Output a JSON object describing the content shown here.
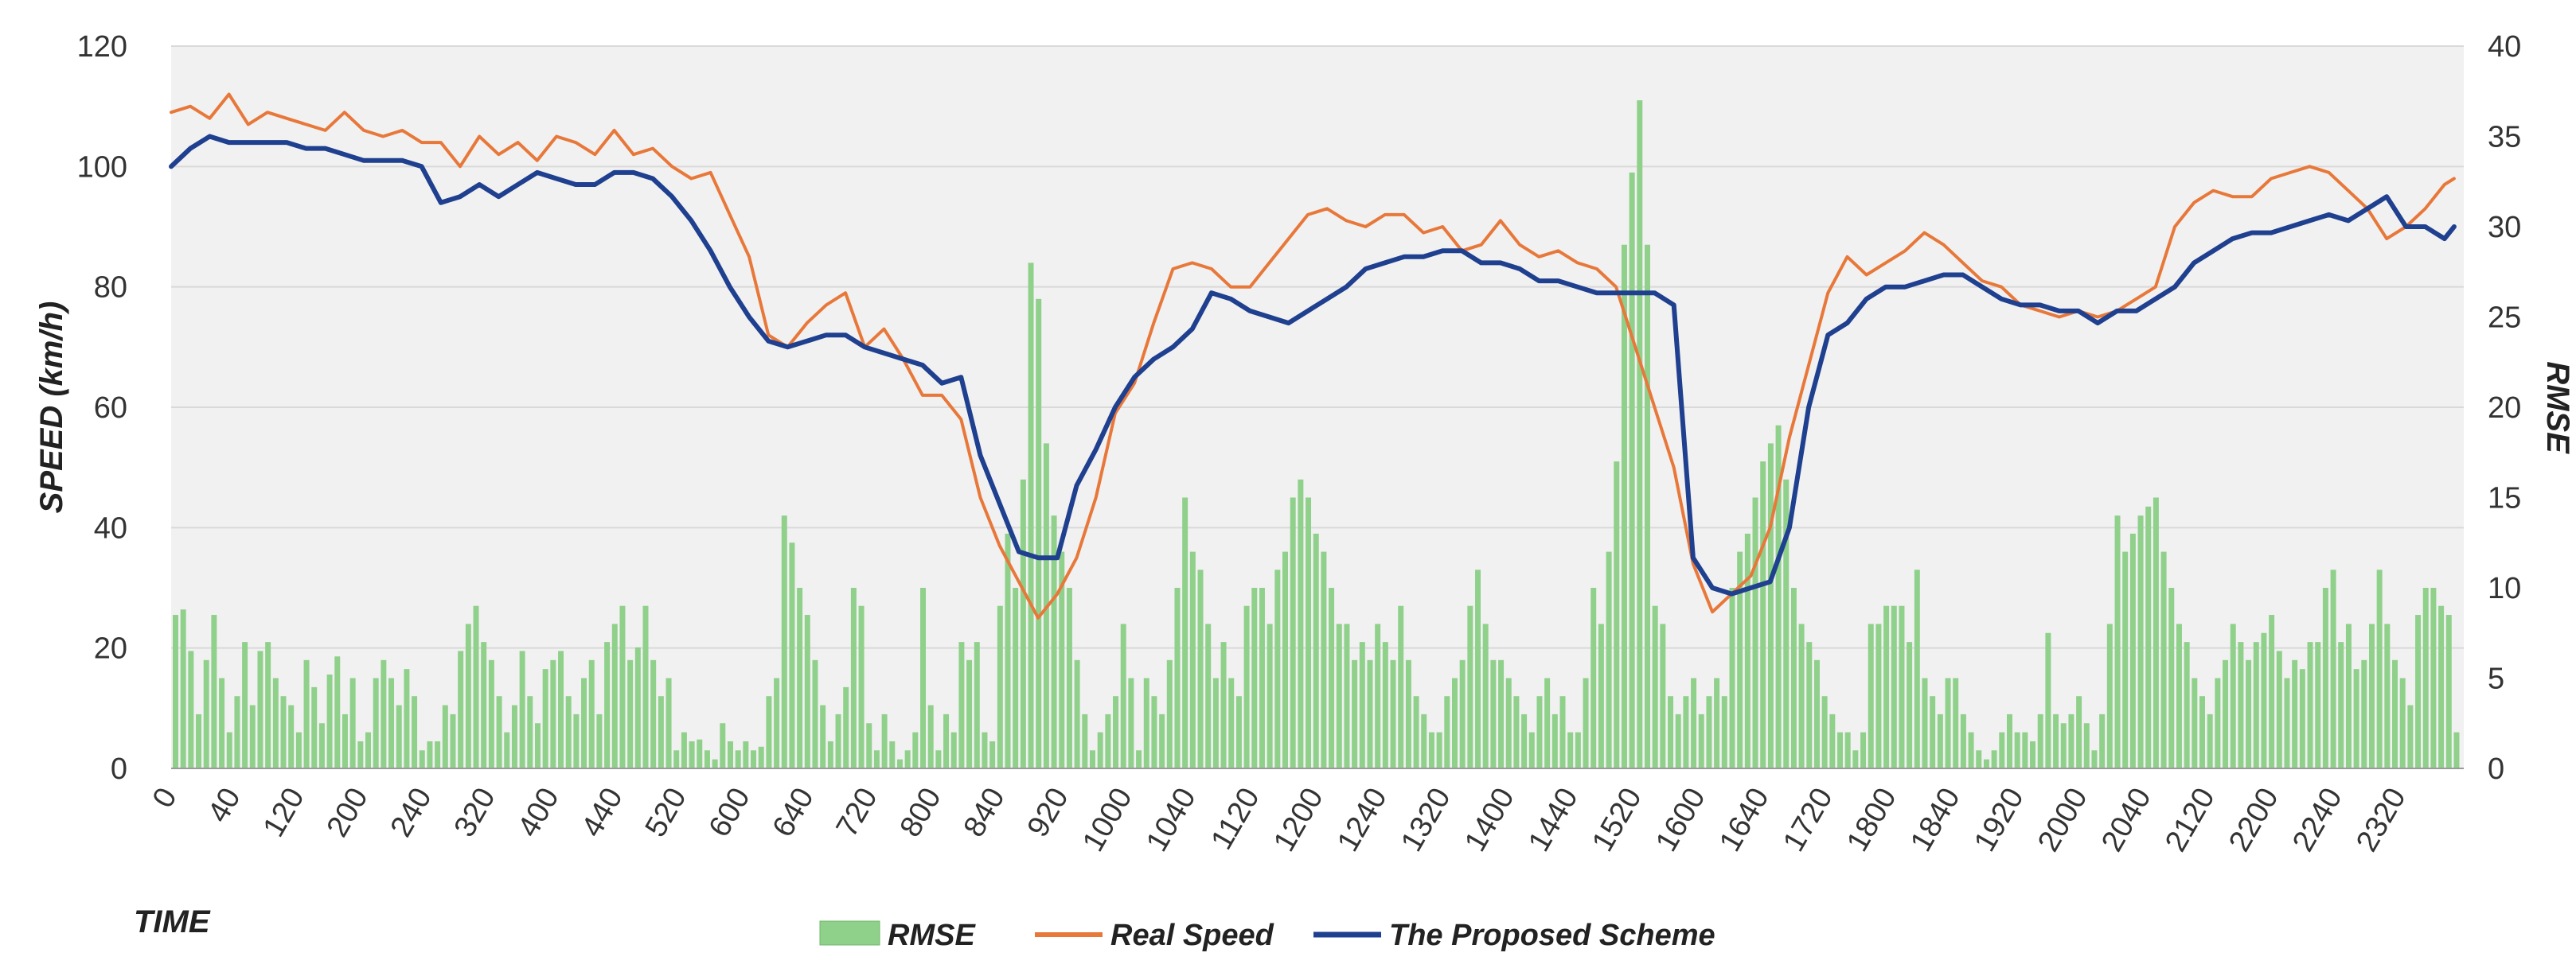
{
  "chart_data": {
    "type": "bar+line",
    "title": "",
    "xlabel": "TIME",
    "ylabel_left": "SPEED (km/h)",
    "ylabel_right": "RMSE",
    "ylim_left": [
      0,
      120
    ],
    "ylim_right": [
      0,
      40
    ],
    "yticks_left": [
      "0",
      "20",
      "40",
      "60",
      "80",
      "100",
      "120"
    ],
    "yticks_right": [
      "0",
      "5",
      "10",
      "15",
      "20",
      "25",
      "30",
      "35",
      "40"
    ],
    "xlim": [
      0,
      2380
    ],
    "xticks": [
      "0",
      "40",
      "120",
      "200",
      "240",
      "320",
      "400",
      "440",
      "520",
      "600",
      "640",
      "720",
      "800",
      "840",
      "920",
      "1000",
      "1040",
      "1120",
      "1200",
      "1240",
      "1320",
      "1400",
      "1440",
      "1520",
      "1600",
      "1640",
      "1720",
      "1800",
      "1840",
      "1920",
      "2000",
      "2040",
      "2120",
      "2200",
      "2240",
      "2320"
    ],
    "grid": true,
    "legend_position": "bottom",
    "colors": {
      "rmse": "#8fd08a",
      "real": "#e8783a",
      "proposed": "#1f3f8f",
      "grid": "#d9d9d9",
      "plot_bg": "#f1f1f1"
    },
    "series": [
      {
        "name": "RMSE",
        "kind": "bar",
        "axis": "right",
        "x": [
          0,
          8,
          16,
          24,
          32,
          40,
          48,
          56,
          64,
          72,
          80,
          88,
          96,
          104,
          112,
          120,
          128,
          136,
          144,
          152,
          160,
          168,
          176,
          184,
          192,
          200,
          208,
          216,
          224,
          232,
          240,
          248,
          256,
          264,
          272,
          280,
          288,
          296,
          304,
          312,
          320,
          328,
          336,
          344,
          352,
          360,
          368,
          376,
          384,
          392,
          400,
          408,
          416,
          424,
          432,
          440,
          448,
          456,
          464,
          472,
          480,
          488,
          496,
          504,
          512,
          520,
          528,
          536,
          544,
          552,
          560,
          568,
          576,
          584,
          592,
          600,
          608,
          616,
          624,
          632,
          640,
          648,
          656,
          664,
          672,
          680,
          688,
          696,
          704,
          712,
          720,
          728,
          736,
          744,
          752,
          760,
          768,
          776,
          784,
          792,
          800,
          808,
          816,
          824,
          832,
          840,
          848,
          856,
          864,
          872,
          880,
          888,
          896,
          904,
          912,
          920,
          928,
          936,
          944,
          952,
          960,
          968,
          976,
          984,
          992,
          1000,
          1008,
          1016,
          1024,
          1032,
          1040,
          1048,
          1056,
          1064,
          1072,
          1080,
          1088,
          1096,
          1104,
          1112,
          1120,
          1128,
          1136,
          1144,
          1152,
          1160,
          1168,
          1176,
          1184,
          1192,
          1200,
          1208,
          1216,
          1224,
          1232,
          1240,
          1248,
          1256,
          1264,
          1272,
          1280,
          1288,
          1296,
          1304,
          1312,
          1320,
          1328,
          1336,
          1344,
          1352,
          1360,
          1368,
          1376,
          1384,
          1392,
          1400,
          1408,
          1416,
          1424,
          1432,
          1440,
          1448,
          1456,
          1464,
          1472,
          1480,
          1488,
          1496,
          1504,
          1512,
          1520,
          1528,
          1536,
          1544,
          1552,
          1560,
          1568,
          1576,
          1584,
          1592,
          1600,
          1608,
          1616,
          1624,
          1632,
          1640,
          1648,
          1656,
          1664,
          1672,
          1680,
          1688,
          1696,
          1704,
          1712,
          1720,
          1728,
          1736,
          1744,
          1752,
          1760,
          1768,
          1776,
          1784,
          1792,
          1800,
          1808,
          1816,
          1824,
          1832,
          1840,
          1848,
          1856,
          1864,
          1872,
          1880,
          1888,
          1896,
          1904,
          1912,
          1920,
          1928,
          1936,
          1944,
          1952,
          1960,
          1968,
          1976,
          1984,
          1992,
          2000,
          2008,
          2016,
          2024,
          2032,
          2040,
          2048,
          2056,
          2064,
          2072,
          2080,
          2088,
          2096,
          2104,
          2112,
          2120,
          2128,
          2136,
          2144,
          2152,
          2160,
          2168,
          2176,
          2184,
          2192,
          2200,
          2208,
          2216,
          2224,
          2232,
          2240,
          2248,
          2256,
          2264,
          2272,
          2280,
          2288,
          2296,
          2304,
          2312,
          2320,
          2328,
          2336,
          2344,
          2352,
          2360,
          2368
        ],
        "values": [
          8.5,
          8.8,
          6.5,
          3,
          6,
          8.5,
          5,
          2,
          4,
          7,
          3.5,
          6.5,
          7,
          5,
          4,
          3.5,
          2,
          6,
          4.5,
          2.5,
          5.2,
          6.2,
          3,
          5,
          1.5,
          2,
          5,
          6,
          5,
          3.5,
          5.5,
          4,
          1,
          1.5,
          1.5,
          3.5,
          3,
          6.5,
          8,
          9,
          7,
          6,
          4,
          2,
          3.5,
          6.5,
          4,
          2.5,
          5.5,
          6,
          6.5,
          4,
          3,
          5,
          6,
          3,
          7,
          8,
          9,
          6,
          6.7,
          9,
          6,
          4,
          5,
          1,
          2,
          1.5,
          1.6,
          1,
          0.5,
          2.5,
          1.5,
          1,
          1.5,
          1,
          1.2,
          4,
          5,
          14,
          12.5,
          10,
          8.5,
          6,
          3.5,
          1.5,
          3,
          4.5,
          10,
          9,
          2.5,
          1,
          3,
          1.5,
          0.5,
          1,
          2,
          10,
          3.5,
          1,
          3,
          2,
          7,
          6,
          7,
          2,
          1.5,
          9,
          13,
          10,
          16,
          28,
          26,
          18,
          14,
          12,
          10,
          6,
          3,
          1,
          2,
          3,
          4,
          8,
          5,
          1,
          5,
          4,
          3,
          6,
          10,
          15,
          12,
          11,
          8,
          5,
          7,
          5,
          4,
          9,
          10,
          10,
          8,
          11,
          12,
          15,
          16,
          15,
          13,
          12,
          10,
          8,
          8,
          6,
          7,
          6,
          8,
          7,
          6,
          9,
          6,
          4,
          3,
          2,
          2,
          4,
          5,
          6,
          9,
          11,
          8,
          6,
          6,
          5,
          4,
          3,
          2,
          4,
          5,
          3,
          4,
          2,
          2,
          5,
          10,
          8,
          12,
          17,
          29,
          33,
          37,
          29,
          9,
          8,
          4,
          3,
          4,
          5,
          3,
          4,
          5,
          4,
          10,
          12,
          13,
          15,
          17,
          18,
          19,
          16,
          10,
          8,
          7,
          6,
          4,
          3,
          2,
          2,
          1,
          2,
          8,
          8,
          9,
          9,
          9,
          7,
          11,
          5,
          4,
          3,
          5,
          5,
          3,
          2,
          1,
          0.5,
          1,
          2,
          3,
          2,
          2,
          1.5,
          3,
          7.5,
          3,
          2.5,
          3,
          4,
          2.5,
          1,
          3,
          8,
          14,
          12,
          13,
          14,
          14.5,
          15,
          12,
          10,
          8,
          7,
          5,
          4,
          3,
          5,
          6,
          8,
          7,
          6,
          7,
          7.5,
          8.5,
          6.5,
          5,
          6,
          5.5,
          7,
          7,
          10,
          11,
          7,
          8,
          5.5,
          6,
          8,
          11,
          8,
          6,
          5,
          3.5,
          8.5,
          10,
          10,
          9,
          8.5,
          2
        ]
      },
      {
        "name": "Real Speed",
        "kind": "line",
        "axis": "left",
        "x": [
          0,
          20,
          40,
          60,
          80,
          100,
          120,
          140,
          160,
          180,
          200,
          220,
          240,
          260,
          280,
          300,
          320,
          340,
          360,
          380,
          400,
          420,
          440,
          460,
          480,
          500,
          520,
          540,
          560,
          580,
          600,
          620,
          640,
          660,
          680,
          700,
          720,
          740,
          760,
          780,
          800,
          820,
          840,
          860,
          880,
          900,
          920,
          940,
          960,
          980,
          1000,
          1020,
          1040,
          1060,
          1080,
          1100,
          1120,
          1140,
          1160,
          1180,
          1200,
          1220,
          1240,
          1260,
          1280,
          1300,
          1320,
          1340,
          1360,
          1380,
          1400,
          1420,
          1440,
          1460,
          1480,
          1500,
          1520,
          1540,
          1560,
          1580,
          1600,
          1620,
          1640,
          1660,
          1680,
          1700,
          1720,
          1740,
          1760,
          1780,
          1800,
          1820,
          1840,
          1860,
          1880,
          1900,
          1920,
          1940,
          1960,
          1980,
          2000,
          2020,
          2040,
          2060,
          2080,
          2100,
          2120,
          2140,
          2160,
          2180,
          2200,
          2220,
          2240,
          2260,
          2280,
          2300,
          2320,
          2340,
          2360,
          2370
        ],
        "values": [
          109,
          110,
          108,
          112,
          107,
          109,
          108,
          107,
          106,
          109,
          106,
          105,
          106,
          104,
          104,
          100,
          105,
          102,
          104,
          101,
          105,
          104,
          102,
          106,
          102,
          103,
          100,
          98,
          99,
          92,
          85,
          72,
          70,
          74,
          77,
          79,
          70,
          73,
          68,
          62,
          62,
          58,
          45,
          37,
          31,
          25,
          29,
          35,
          45,
          59,
          64,
          74,
          83,
          84,
          83,
          80,
          80,
          84,
          88,
          92,
          93,
          91,
          90,
          92,
          92,
          89,
          90,
          86,
          87,
          91,
          87,
          85,
          86,
          84,
          83,
          80,
          70,
          60,
          50,
          34,
          26,
          29,
          32,
          40,
          55,
          67,
          79,
          85,
          82,
          84,
          86,
          89,
          87,
          84,
          81,
          80,
          77,
          76,
          75,
          76,
          75,
          76,
          78,
          80,
          90,
          94,
          96,
          95,
          95,
          98,
          99,
          100,
          99,
          96,
          93,
          88,
          90,
          93,
          97,
          98
        ]
      },
      {
        "name": "The Proposed Scheme",
        "kind": "line",
        "axis": "left",
        "x": [
          0,
          20,
          40,
          60,
          80,
          100,
          120,
          140,
          160,
          180,
          200,
          220,
          240,
          260,
          280,
          300,
          320,
          340,
          360,
          380,
          400,
          420,
          440,
          460,
          480,
          500,
          520,
          540,
          560,
          580,
          600,
          620,
          640,
          660,
          680,
          700,
          720,
          740,
          760,
          780,
          800,
          820,
          840,
          860,
          880,
          900,
          920,
          940,
          960,
          980,
          1000,
          1020,
          1040,
          1060,
          1080,
          1100,
          1120,
          1140,
          1160,
          1180,
          1200,
          1220,
          1240,
          1260,
          1280,
          1300,
          1320,
          1340,
          1360,
          1380,
          1400,
          1420,
          1440,
          1460,
          1480,
          1500,
          1520,
          1540,
          1560,
          1580,
          1600,
          1620,
          1640,
          1660,
          1680,
          1700,
          1720,
          1740,
          1760,
          1780,
          1800,
          1820,
          1840,
          1860,
          1880,
          1900,
          1920,
          1940,
          1960,
          1980,
          2000,
          2020,
          2040,
          2060,
          2080,
          2100,
          2120,
          2140,
          2160,
          2180,
          2200,
          2220,
          2240,
          2260,
          2280,
          2300,
          2320,
          2340,
          2360,
          2370
        ],
        "values": [
          100,
          103,
          105,
          104,
          104,
          104,
          104,
          103,
          103,
          102,
          101,
          101,
          101,
          100,
          94,
          95,
          97,
          95,
          97,
          99,
          98,
          97,
          97,
          99,
          99,
          98,
          95,
          91,
          86,
          80,
          75,
          71,
          70,
          71,
          72,
          72,
          70,
          69,
          68,
          67,
          64,
          65,
          52,
          44,
          36,
          35,
          35,
          47,
          53,
          60,
          65,
          68,
          70,
          73,
          79,
          78,
          76,
          75,
          74,
          76,
          78,
          80,
          83,
          84,
          85,
          85,
          86,
          86,
          84,
          84,
          83,
          81,
          81,
          80,
          79,
          79,
          79,
          79,
          77,
          35,
          30,
          29,
          30,
          31,
          40,
          60,
          72,
          74,
          78,
          80,
          80,
          81,
          82,
          82,
          80,
          78,
          77,
          77,
          76,
          76,
          74,
          76,
          76,
          78,
          80,
          84,
          86,
          88,
          89,
          89,
          90,
          91,
          92,
          91,
          93,
          95,
          90,
          90,
          88,
          90
        ]
      }
    ]
  }
}
